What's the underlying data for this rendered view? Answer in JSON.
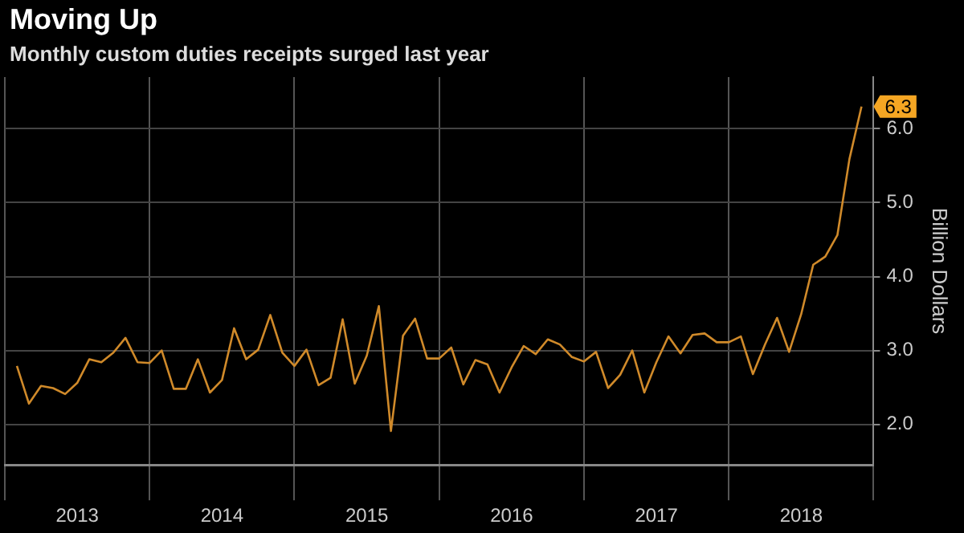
{
  "chart_data": {
    "type": "line",
    "title": "Moving Up",
    "subtitle": "Monthly custom duties receipts surged last year",
    "ylabel": "Billion Dollars",
    "x": [
      "2013-02",
      "2013-03",
      "2013-04",
      "2013-05",
      "2013-06",
      "2013-07",
      "2013-08",
      "2013-09",
      "2013-10",
      "2013-11",
      "2013-12",
      "2014-01",
      "2014-02",
      "2014-03",
      "2014-04",
      "2014-05",
      "2014-06",
      "2014-07",
      "2014-08",
      "2014-09",
      "2014-10",
      "2014-11",
      "2014-12",
      "2015-01",
      "2015-02",
      "2015-03",
      "2015-04",
      "2015-05",
      "2015-06",
      "2015-07",
      "2015-08",
      "2015-09",
      "2015-10",
      "2015-11",
      "2015-12",
      "2016-01",
      "2016-02",
      "2016-03",
      "2016-04",
      "2016-05",
      "2016-06",
      "2016-07",
      "2016-08",
      "2016-09",
      "2016-10",
      "2016-11",
      "2016-12",
      "2017-01",
      "2017-02",
      "2017-03",
      "2017-04",
      "2017-05",
      "2017-06",
      "2017-07",
      "2017-08",
      "2017-09",
      "2017-10",
      "2017-11",
      "2017-12",
      "2018-01",
      "2018-02",
      "2018-03",
      "2018-04",
      "2018-05",
      "2018-06",
      "2018-07",
      "2018-08",
      "2018-09",
      "2018-10",
      "2018-11",
      "2018-12"
    ],
    "series": [
      {
        "color": "#d08a2a",
        "values": [
          2.79,
          2.28,
          2.52,
          2.49,
          2.41,
          2.56,
          2.88,
          2.84,
          2.97,
          3.17,
          2.84,
          2.83,
          3.0,
          2.48,
          2.48,
          2.88,
          2.43,
          2.6,
          3.3,
          2.88,
          3.01,
          3.48,
          2.97,
          2.79,
          3.01,
          2.53,
          2.63,
          3.42,
          2.55,
          2.93,
          3.6,
          1.91,
          3.2,
          3.43,
          2.89,
          2.89,
          3.04,
          2.54,
          2.87,
          2.81,
          2.43,
          2.77,
          3.06,
          2.95,
          3.15,
          3.08,
          2.91,
          2.85,
          2.98,
          2.49,
          2.67,
          3.0,
          2.43,
          2.84,
          3.19,
          2.96,
          3.21,
          3.23,
          3.11,
          3.11,
          3.19,
          2.68,
          3.08,
          3.44,
          2.98,
          3.49,
          4.16,
          4.27,
          4.56,
          5.59,
          6.3
        ],
        "value_labels": [
          null,
          null,
          null,
          null,
          null,
          null,
          null,
          null,
          null,
          null,
          null,
          null,
          null,
          null,
          null,
          null,
          null,
          null,
          null,
          null,
          null,
          null,
          null,
          null,
          null,
          null,
          null,
          null,
          null,
          null,
          null,
          null,
          null,
          null,
          null,
          null,
          null,
          null,
          null,
          null,
          null,
          null,
          null,
          null,
          null,
          null,
          null,
          null,
          null,
          null,
          null,
          null,
          null,
          null,
          null,
          null,
          null,
          null,
          null,
          null,
          null,
          null,
          null,
          null,
          null,
          null,
          null,
          null,
          null,
          null,
          "6.3"
        ]
      }
    ],
    "xlim": [
      "2013-01",
      "2019-01"
    ],
    "xticks": [
      {
        "value": "2013-01",
        "label": null
      },
      {
        "value": "2013-07",
        "label": "2013"
      },
      {
        "value": "2014-01",
        "label": null
      },
      {
        "value": "2014-07",
        "label": "2014"
      },
      {
        "value": "2015-01",
        "label": null
      },
      {
        "value": "2015-07",
        "label": "2015"
      },
      {
        "value": "2016-01",
        "label": null
      },
      {
        "value": "2016-07",
        "label": "2016"
      },
      {
        "value": "2017-01",
        "label": null
      },
      {
        "value": "2017-07",
        "label": "2017"
      },
      {
        "value": "2018-01",
        "label": null
      },
      {
        "value": "2018-07",
        "label": "2018"
      },
      {
        "value": "2019-01",
        "label": null
      }
    ],
    "ylim": [
      1.45,
      6.7
    ],
    "yticks": [
      {
        "value": 2,
        "label": "2.0"
      },
      {
        "value": 3,
        "label": "3.0"
      },
      {
        "value": 4,
        "label": "4.0"
      },
      {
        "value": 5,
        "label": "5.0"
      },
      {
        "value": 6,
        "label": "6.0"
      }
    ],
    "grid": true,
    "legend": false,
    "marker": "none",
    "line_style": "solid"
  }
}
